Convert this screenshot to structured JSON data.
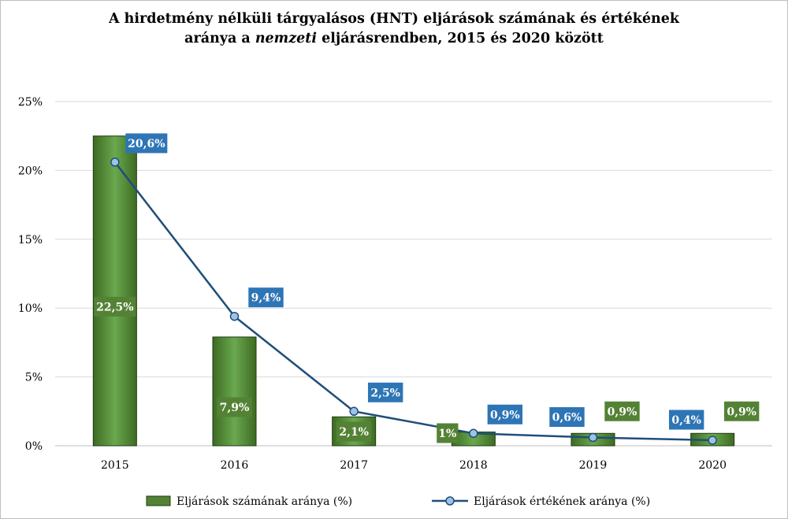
{
  "chart_data": {
    "type": "bar",
    "title_part1": "A hirdetmény nélküli tárgyalásos (HNT) eljárások számának és értékének",
    "title_part2a": "aránya a ",
    "title_part2_italic": "nemzeti",
    "title_part2b": " eljárásrendben, 2015 és 2020 között",
    "categories": [
      "2015",
      "2016",
      "2017",
      "2018",
      "2019",
      "2020"
    ],
    "ylim": [
      0,
      25
    ],
    "yticks": [
      0,
      5,
      10,
      15,
      20,
      25
    ],
    "ytick_labels": [
      "0%",
      "5%",
      "10%",
      "15%",
      "20%",
      "25%"
    ],
    "grid": true,
    "legend_position": "bottom",
    "series": [
      {
        "name": "Eljárások számának aránya (%)",
        "type": "bar",
        "color": "#548235",
        "values": [
          22.5,
          7.9,
          2.1,
          1.0,
          0.9,
          0.9
        ],
        "labels": [
          "22,5%",
          "7,9%",
          "2,1%",
          "1%",
          "0,9%",
          "0,9%"
        ]
      },
      {
        "name": "Eljárások értékének aránya (%)",
        "type": "line",
        "color": "#1f4e79",
        "label_color": "#2e75b6",
        "values": [
          20.6,
          9.4,
          2.5,
          0.9,
          0.6,
          0.4
        ],
        "labels": [
          "20,6%",
          "9,4%",
          "2,5%",
          "0,9%",
          "0,6%",
          "0,4%"
        ]
      }
    ]
  }
}
